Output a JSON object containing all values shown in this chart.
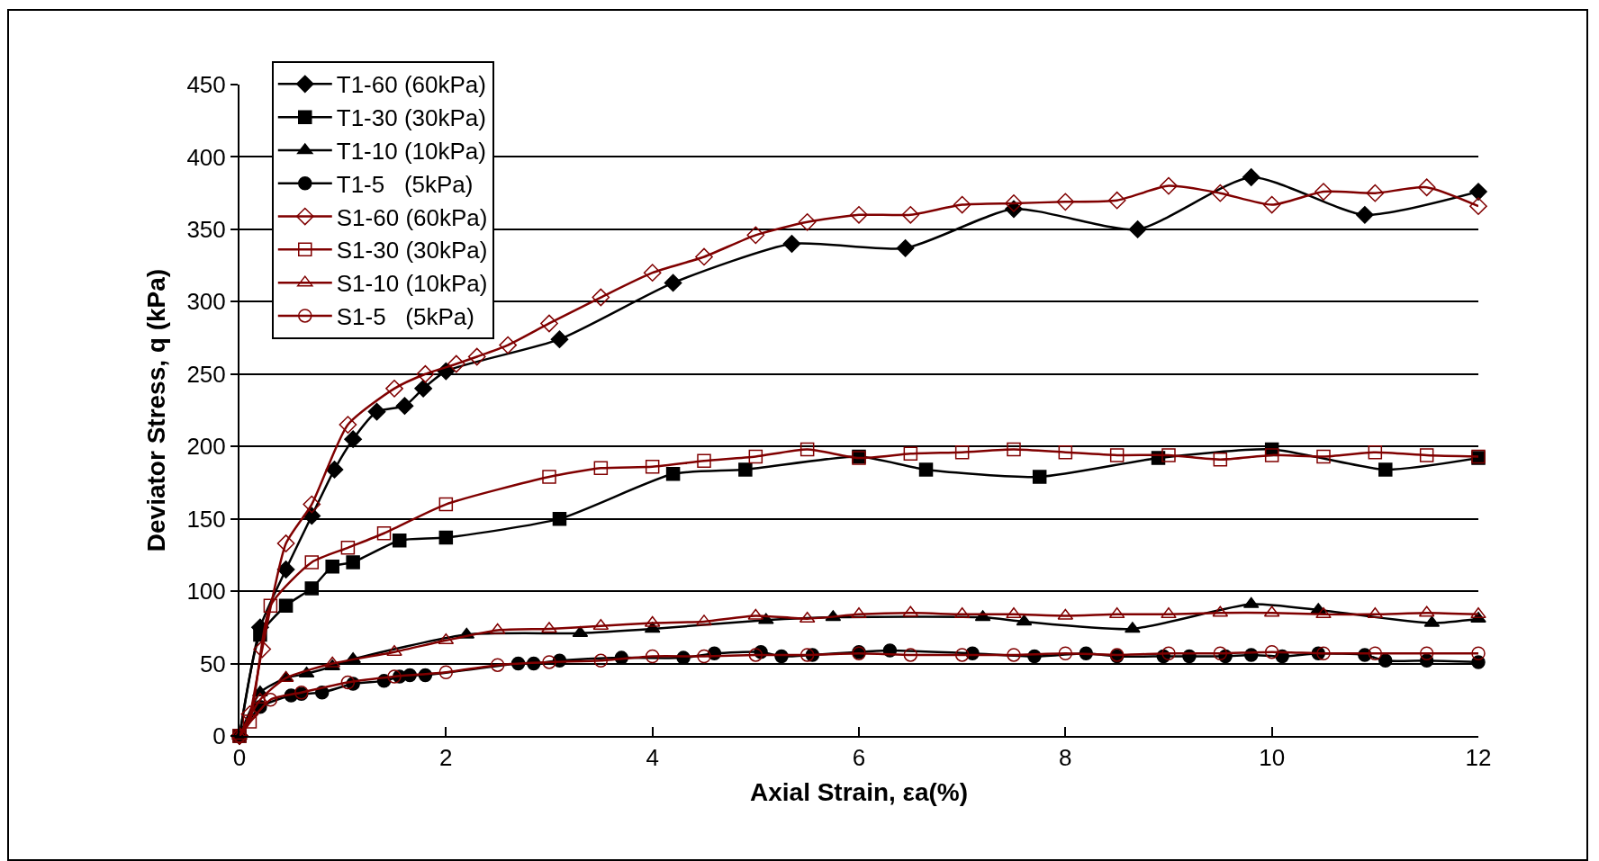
{
  "chart_data": {
    "type": "line",
    "xlabel": "Axial Strain, εa(%)",
    "ylabel": "Deviator Stress, q (kPa)",
    "xlim": [
      0,
      12
    ],
    "xticks": [
      0,
      2,
      4,
      6,
      8,
      10,
      12
    ],
    "ylim": [
      0,
      450
    ],
    "yticks": [
      0,
      50,
      100,
      150,
      200,
      250,
      300,
      350,
      400,
      450
    ],
    "grid": "y",
    "legend": "top left",
    "line_style": "solid",
    "series": [
      {
        "name": "T1-60 (60kPa)",
        "color": "#000000",
        "marker": "diamond",
        "x": [
          0,
          0.2,
          0.45,
          0.7,
          0.92,
          1.1,
          1.33,
          1.6,
          1.78,
          2.0,
          3.1,
          4.2,
          5.35,
          6.45,
          7.5,
          8.7,
          9.8,
          10.9,
          12
        ],
        "values": [
          0,
          75,
          115,
          152,
          184,
          205,
          224,
          228,
          240,
          252,
          274,
          313,
          340,
          337,
          364,
          350,
          386,
          360,
          376
        ]
      },
      {
        "name": "T1-30 (30kPa)",
        "color": "#000000",
        "marker": "square",
        "x": [
          0,
          0.2,
          0.45,
          0.7,
          0.9,
          1.1,
          1.55,
          2.0,
          3.1,
          4.2,
          4.9,
          6.0,
          6.65,
          7.75,
          8.9,
          10.0,
          11.1,
          12
        ],
        "values": [
          0,
          70,
          90,
          102,
          117,
          120,
          135,
          137,
          150,
          181,
          184,
          193,
          184,
          179,
          192,
          198,
          184,
          192
        ]
      },
      {
        "name": "T1-10 (10kPa)",
        "color": "#000000",
        "marker": "triangle",
        "x": [
          0,
          0.2,
          0.45,
          0.65,
          0.9,
          1.1,
          2.2,
          3.3,
          4.0,
          5.1,
          5.75,
          7.2,
          7.6,
          8.65,
          9.8,
          10.45,
          11.55,
          12
        ],
        "values": [
          0,
          30,
          40,
          43,
          48,
          53,
          70,
          71,
          74,
          80,
          82,
          82,
          79,
          74,
          91,
          87,
          78,
          81
        ]
      },
      {
        "name": "T1-5   (5kPa)",
        "color": "#000000",
        "marker": "circle",
        "x": [
          0,
          0.2,
          0.5,
          0.6,
          0.8,
          1.1,
          1.4,
          1.55,
          1.65,
          1.8,
          2.7,
          2.85,
          3.1,
          3.7,
          4.3,
          4.6,
          5.05,
          5.25,
          5.55,
          6.0,
          6.3,
          7.1,
          7.7,
          8.2,
          8.5,
          8.95,
          9.2,
          9.55,
          9.8,
          10.1,
          10.45,
          10.9,
          11.1,
          11.5,
          12
        ],
        "values": [
          0,
          20,
          28,
          29,
          30,
          36,
          38,
          41,
          42,
          42,
          50,
          50,
          52,
          54,
          54,
          57,
          58,
          55,
          56,
          58,
          59,
          57,
          55,
          57,
          55,
          55,
          55,
          55,
          56,
          55,
          57,
          56,
          52,
          52,
          51
        ]
      },
      {
        "name": "S1-60 (60kPa)",
        "color": "#800000",
        "marker": "diamond-open",
        "x": [
          0,
          0.1,
          0.22,
          0.45,
          0.7,
          1.05,
          1.5,
          1.8,
          2.1,
          2.3,
          2.6,
          3.0,
          3.5,
          4.0,
          4.5,
          5.0,
          5.5,
          6.0,
          6.5,
          7.0,
          7.5,
          8.0,
          8.5,
          9.0,
          9.5,
          10.0,
          10.5,
          11.0,
          11.5,
          12
        ],
        "values": [
          0,
          15,
          60,
          133,
          160,
          215,
          240,
          250,
          257,
          262,
          270,
          285,
          303,
          320,
          331,
          346,
          355,
          360,
          360,
          367,
          368,
          369,
          370,
          380,
          375,
          367,
          376,
          375,
          379,
          366
        ]
      },
      {
        "name": "S1-30 (30kPa)",
        "color": "#800000",
        "marker": "square-open",
        "x": [
          0,
          0.1,
          0.3,
          0.7,
          1.05,
          1.4,
          2.0,
          3.0,
          3.5,
          4.0,
          4.5,
          5.0,
          5.5,
          6.0,
          6.5,
          7.0,
          7.5,
          8.0,
          8.5,
          9.0,
          9.5,
          10.0,
          10.5,
          11.0,
          11.5,
          12
        ],
        "values": [
          0,
          10,
          90,
          120,
          130,
          140,
          160,
          179,
          185,
          186,
          190,
          193,
          198,
          192,
          195,
          196,
          198,
          196,
          194,
          194,
          191,
          194,
          193,
          196,
          194,
          193
        ]
      },
      {
        "name": "S1-10 (10kPa)",
        "color": "#800000",
        "marker": "triangle-open",
        "x": [
          0,
          0.2,
          0.45,
          0.9,
          1.5,
          2.0,
          2.5,
          3.0,
          3.5,
          4.0,
          4.5,
          5.0,
          5.5,
          6.0,
          6.5,
          7.0,
          7.5,
          8.0,
          8.5,
          9.0,
          9.5,
          10.0,
          10.5,
          11.0,
          11.5,
          12
        ],
        "values": [
          0,
          25,
          40,
          50,
          58,
          66,
          73,
          74,
          76,
          78,
          79,
          83,
          81,
          84,
          85,
          84,
          84,
          83,
          84,
          84,
          85,
          85,
          84,
          84,
          85,
          84
        ]
      },
      {
        "name": "S1-5   (5kPa)",
        "color": "#800000",
        "marker": "circle-open",
        "x": [
          0,
          0.3,
          0.6,
          1.05,
          1.5,
          2.0,
          2.5,
          3.0,
          3.5,
          4.0,
          4.5,
          5.0,
          5.5,
          6.0,
          6.5,
          7.0,
          7.5,
          8.0,
          8.5,
          9.0,
          9.5,
          10.0,
          10.5,
          11.0,
          11.5,
          12
        ],
        "values": [
          0,
          25,
          30,
          37,
          41,
          44,
          49,
          51,
          52,
          55,
          55,
          56,
          56,
          57,
          56,
          56,
          56,
          57,
          56,
          57,
          57,
          58,
          57,
          57,
          57,
          57
        ]
      }
    ]
  }
}
